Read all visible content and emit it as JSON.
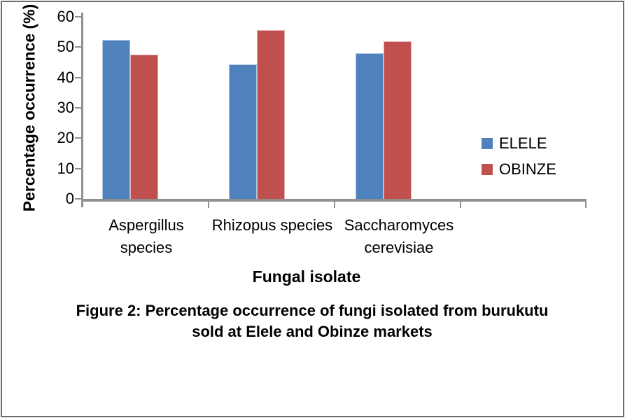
{
  "figure": {
    "caption": {
      "line1": "Figure 2: Percentage occurrence of fungi isolated from burukutu",
      "line2": "sold at Elele and Obinze markets"
    }
  },
  "chart_data": {
    "type": "bar",
    "title": "",
    "xlabel": "Fungal isolate",
    "ylabel": "Percentage occurrence (%)",
    "categories": [
      "Aspergillus species",
      "Rhizopus species",
      "Saccharomyces cerevisiae"
    ],
    "category_label_lines": [
      [
        "Aspergillus",
        "species"
      ],
      [
        "Rhizopus species"
      ],
      [
        "Saccharomyces",
        "cerevisiae"
      ]
    ],
    "series": [
      {
        "name": "ELELE",
        "color": "#4F81BD",
        "values": [
          52.5,
          44.4,
          48.0
        ]
      },
      {
        "name": "OBINZE",
        "color": "#C0504D",
        "values": [
          47.5,
          55.6,
          52.0
        ]
      }
    ],
    "ylim": [
      0,
      60
    ],
    "yticks": [
      0,
      10,
      20,
      30,
      40,
      50,
      60
    ],
    "grid": false,
    "legend_position": "right",
    "axis_color": "#909090"
  }
}
